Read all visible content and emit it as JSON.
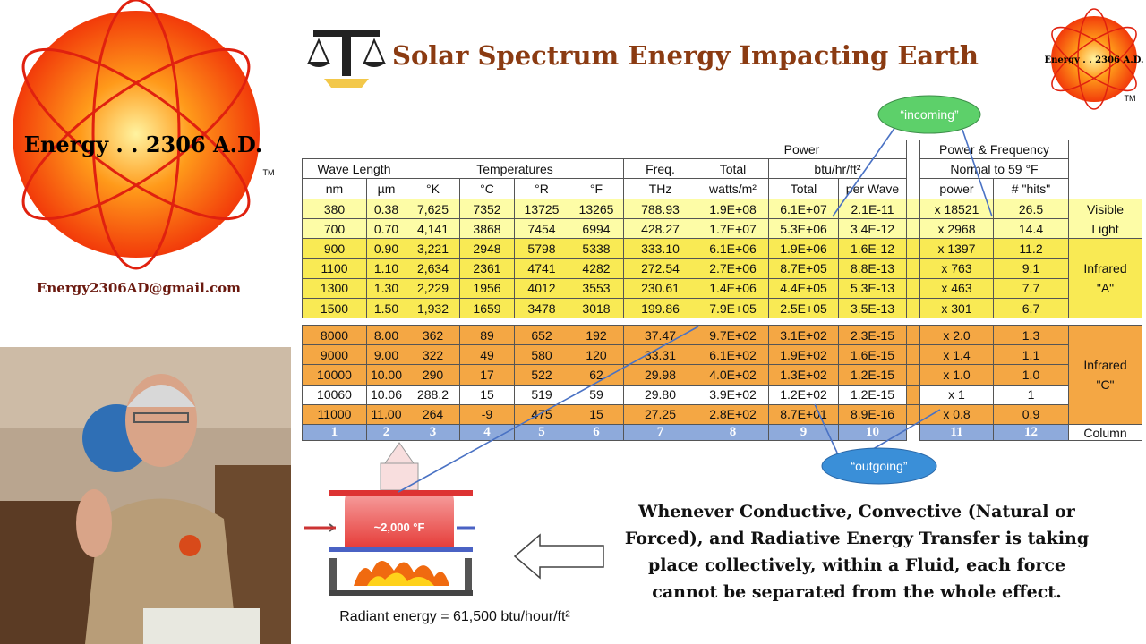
{
  "title": "Solar Spectrum Energy Impacting Earth",
  "logo": {
    "name": "Energy . . 2306 A.D.",
    "tm": "TM",
    "email": "Energy2306AD@gmail.com"
  },
  "corner_logo": {
    "name": "Energy . . 2306 A.D.",
    "tm": "TM"
  },
  "callouts": {
    "incoming": "“incoming”",
    "outgoing": "“outgoing”"
  },
  "table": {
    "group_headers": {
      "power": "Power",
      "power_frequency": "Power & Frequency",
      "wave_length": "Wave Length",
      "temperatures": "Temperatures",
      "freq": "Freq.",
      "total": "Total",
      "btu": "btu/hr/ft²",
      "normal": "Normal to 59 °F"
    },
    "units": [
      "nm",
      "µm",
      "°K",
      "°C",
      "°R",
      "°F",
      "THz",
      "watts/m²",
      "Total",
      "per Wave",
      "power",
      "# \"hits\""
    ],
    "rows": [
      [
        "380",
        "0.38",
        "7,625",
        "7352",
        "13725",
        "13265",
        "788.93",
        "1.9E+08",
        "6.1E+07",
        "2.1E-11",
        "x 18521",
        "26.5"
      ],
      [
        "700",
        "0.70",
        "4,141",
        "3868",
        "7454",
        "6994",
        "428.27",
        "1.7E+07",
        "5.3E+06",
        "3.4E-12",
        "x 2968",
        "14.4"
      ],
      [
        "900",
        "0.90",
        "3,221",
        "2948",
        "5798",
        "5338",
        "333.10",
        "6.1E+06",
        "1.9E+06",
        "1.6E-12",
        "x 1397",
        "11.2"
      ],
      [
        "1100",
        "1.10",
        "2,634",
        "2361",
        "4741",
        "4282",
        "272.54",
        "2.7E+06",
        "8.7E+05",
        "8.8E-13",
        "x 763",
        "9.1"
      ],
      [
        "1300",
        "1.30",
        "2,229",
        "1956",
        "4012",
        "3553",
        "230.61",
        "1.4E+06",
        "4.4E+05",
        "5.3E-13",
        "x 463",
        "7.7"
      ],
      [
        "1500",
        "1.50",
        "1,932",
        "1659",
        "3478",
        "3018",
        "199.86",
        "7.9E+05",
        "2.5E+05",
        "3.5E-13",
        "x 301",
        "6.7"
      ],
      [
        "8000",
        "8.00",
        "362",
        "89",
        "652",
        "192",
        "37.47",
        "9.7E+02",
        "3.1E+02",
        "2.3E-15",
        "x 2.0",
        "1.3"
      ],
      [
        "9000",
        "9.00",
        "322",
        "49",
        "580",
        "120",
        "33.31",
        "6.1E+02",
        "1.9E+02",
        "1.6E-15",
        "x 1.4",
        "1.1"
      ],
      [
        "10000",
        "10.00",
        "290",
        "17",
        "522",
        "62",
        "29.98",
        "4.0E+02",
        "1.3E+02",
        "1.2E-15",
        "x 1.0",
        "1.0"
      ],
      [
        "10060",
        "10.06",
        "288.2",
        "15",
        "519",
        "59",
        "29.80",
        "3.9E+02",
        "1.2E+02",
        "1.2E-15",
        "x 1",
        "1"
      ],
      [
        "11000",
        "11.00",
        "264",
        "-9",
        "475",
        "15",
        "27.25",
        "2.8E+02",
        "8.7E+01",
        "8.9E-16",
        "x 0.8",
        "0.9"
      ]
    ],
    "groups": [
      {
        "label": [
          "Visible",
          "Light"
        ]
      },
      {
        "label": [
          "Infrared",
          "\"A\""
        ]
      },
      {
        "label": [
          "Infrared",
          "\"C\""
        ]
      }
    ],
    "column_numbers": [
      "1",
      "2",
      "3",
      "4",
      "5",
      "6",
      "7",
      "8",
      "9",
      "10",
      "11",
      "12"
    ],
    "column_label": "Column"
  },
  "diagram": {
    "temperature": "~2,000 °F",
    "caption": "Radiant energy = 61,500 btu/hour/ft²"
  },
  "statement": [
    "Whenever Conductive, Convective (Natural or",
    "Forced), and Radiative Energy Transfer is taking",
    "place collectively, within a Fluid, each force",
    "cannot be separated from the whole effect."
  ]
}
